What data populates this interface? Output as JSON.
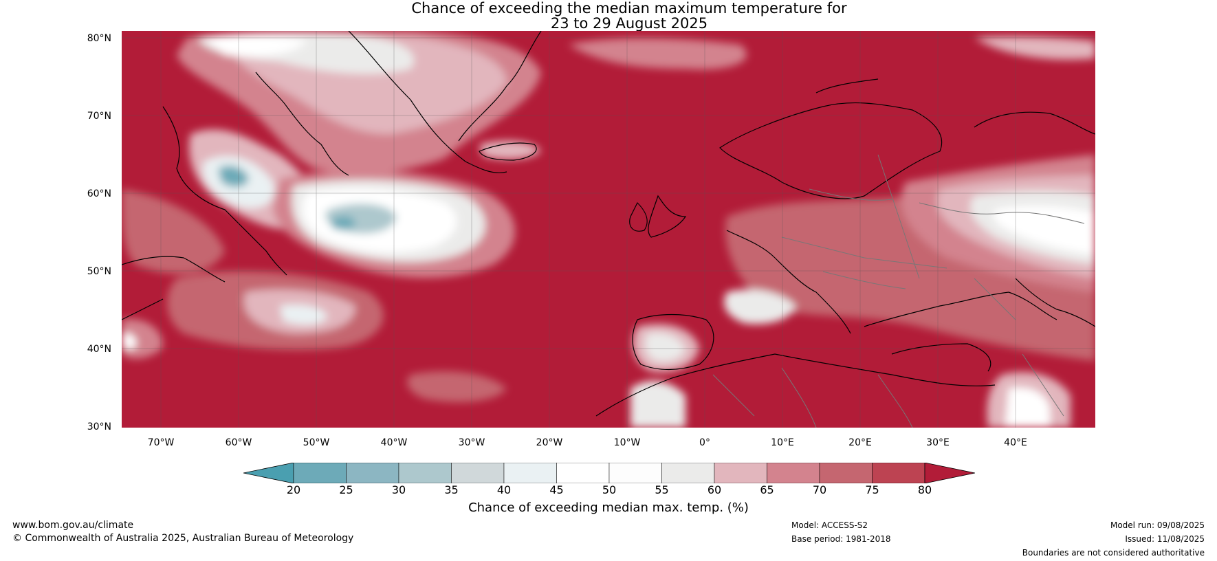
{
  "title": {
    "line1": "Chance of exceeding the median maximum temperature for",
    "line2": "23 to 29 August 2025"
  },
  "map": {
    "lat_labels": [
      "80°N",
      "70°N",
      "60°N",
      "50°N",
      "40°N",
      "30°N"
    ],
    "lon_labels": [
      "70°W",
      "60°W",
      "50°W",
      "40°W",
      "30°W",
      "20°W",
      "10°W",
      "0°",
      "10°E",
      "20°E",
      "30°E",
      "40°E"
    ]
  },
  "colorbar": {
    "ticks": [
      "20",
      "25",
      "30",
      "35",
      "40",
      "45",
      "50",
      "55",
      "60",
      "65",
      "70",
      "75",
      "80"
    ],
    "colors": [
      "#4a9fb0",
      "#6daab8",
      "#8cb6c2",
      "#adc8cd",
      "#d0d8da",
      "#eaf1f3",
      "#ffffff",
      "#fdfdfd",
      "#ebebea",
      "#e2b6bd",
      "#d3838e",
      "#c56670",
      "#bd4352",
      "#b21c38"
    ],
    "label": "Chance of exceeding median max. temp. (%)"
  },
  "footer": {
    "url": "www.bom.gov.au/climate",
    "copyright": "© Commonwealth of Australia 2025, Australian Bureau of Meteorology",
    "model": "Model: ACCESS-S2",
    "base_period": "Base period: 1981-2018",
    "model_run": "Model run: 09/08/2025",
    "issued": "Issued: 11/08/2025",
    "disclaimer": "Boundaries are not considered authoritative"
  }
}
